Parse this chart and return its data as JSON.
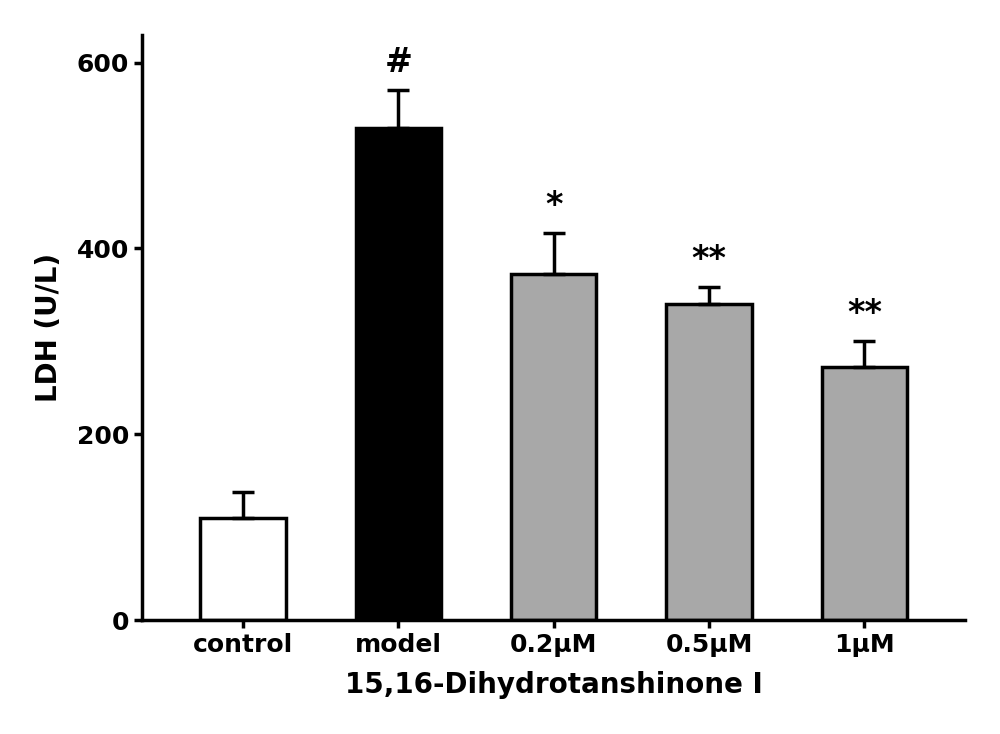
{
  "categories": [
    "control",
    "model",
    "0.2μM",
    "0.5μM",
    "1μM"
  ],
  "values": [
    110,
    530,
    372,
    340,
    272
  ],
  "errors": [
    28,
    40,
    45,
    18,
    28
  ],
  "bar_colors": [
    "#ffffff",
    "#000000",
    "#a8a8a8",
    "#a8a8a8",
    "#a8a8a8"
  ],
  "bar_edgecolors": [
    "#000000",
    "#000000",
    "#000000",
    "#000000",
    "#000000"
  ],
  "annotations": [
    "",
    "#",
    "*",
    "**",
    "**"
  ],
  "ylabel": "LDH (U/L)",
  "xlabel": "15,16-Dihydrotanshinone I",
  "ylim": [
    0,
    630
  ],
  "yticks": [
    0,
    200,
    400,
    600
  ],
  "label_fontsize": 20,
  "tick_fontsize": 18,
  "annotation_fontsize": 24,
  "bar_width": 0.55,
  "linewidth": 2.5
}
